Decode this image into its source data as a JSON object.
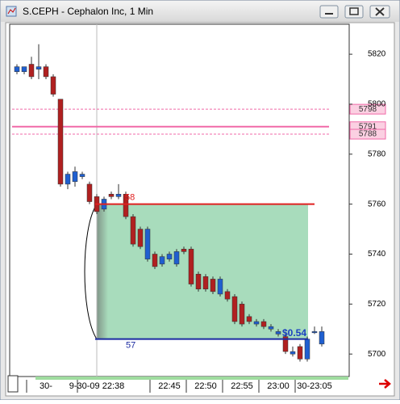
{
  "chart_data": {
    "type": "candlestick",
    "title": "S.CEPH - Cephalon Inc, 1 Min",
    "categories": [
      null,
      null,
      null,
      null,
      "30-",
      null,
      null,
      null,
      null,
      null,
      null,
      "9-30-09 22:38",
      null,
      null,
      null,
      null,
      null,
      null,
      null,
      null,
      null,
      "22:45",
      null,
      null,
      null,
      null,
      "22:50",
      null,
      null,
      null,
      null,
      "22:55",
      null,
      null,
      null,
      null,
      "23:00",
      null,
      null,
      null,
      null,
      "30-23:05",
      null
    ],
    "open": [
      5813,
      5813,
      5816,
      5814,
      5815,
      5811,
      5802,
      5768,
      5769,
      5771,
      5768,
      5763,
      5758,
      5764,
      5763,
      5764,
      5755,
      5750,
      5738,
      5740,
      5736,
      5738,
      5736,
      5742,
      5742,
      5732,
      5731,
      5730,
      5724,
      5725,
      5723,
      5720,
      5715,
      5712,
      5713,
      5710,
      5708,
      5707,
      5700,
      5703,
      5698,
      5709,
      5704
    ],
    "high": [
      5816,
      5815,
      5819,
      5824,
      5816,
      5812,
      5802,
      5773,
      5775,
      5773,
      5769,
      5764,
      5763,
      5765,
      5768,
      5765,
      5756,
      5751,
      5751,
      5741,
      5740,
      5741,
      5742,
      5743,
      5743,
      5733,
      5732,
      5731,
      5731,
      5726,
      5724,
      5721,
      5716,
      5714,
      5714,
      5712,
      5710,
      5708,
      5703,
      5704,
      5707,
      5711,
      5711
    ],
    "low": [
      5812,
      5812,
      5810,
      5810,
      5810,
      5803,
      5767,
      5766,
      5767,
      5770,
      5760,
      5756,
      5757,
      5762,
      5762,
      5754,
      5743,
      5742,
      5737,
      5734,
      5735,
      5737,
      5735,
      5740,
      5727,
      5725,
      5725,
      5724,
      5723,
      5721,
      5712,
      5711,
      5712,
      5711,
      5710,
      5709,
      5707,
      5700,
      5699,
      5697,
      5697,
      5708,
      5703
    ],
    "close": [
      5815,
      5815,
      5811,
      5815,
      5811,
      5804,
      5768,
      5772,
      5773,
      5772,
      5761,
      5757,
      5762,
      5763,
      5764,
      5755,
      5744,
      5743,
      5750,
      5735,
      5739,
      5740,
      5741,
      5741,
      5728,
      5726,
      5726,
      5725,
      5730,
      5722,
      5713,
      5712,
      5713,
      5713,
      5711,
      5711,
      5709,
      5701,
      5701,
      5698,
      5706,
      5709,
      5709
    ],
    "up_color": "#1f5fd0",
    "down_color": "#b02020",
    "ylim": [
      5691,
      5832
    ],
    "yticks": [
      5700,
      5720,
      5740,
      5760,
      5780,
      5800,
      5820
    ],
    "price_levels": [
      5798,
      5791,
      5788
    ],
    "level_color": "#f06aa8",
    "upper_line": {
      "value": 5760,
      "label": "58",
      "color": "#e02020"
    },
    "lower_line": {
      "value": 5706,
      "label": "57",
      "color": "#1a2aa0"
    },
    "range_label": "$0.54",
    "zone_color": "#a8dcbc"
  }
}
